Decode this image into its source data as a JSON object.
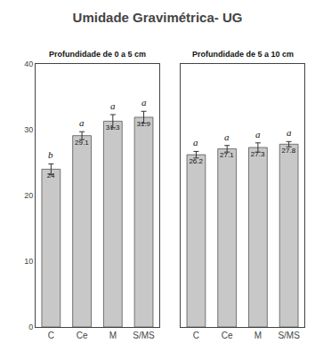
{
  "title": "Umidade Gravimétrica- UG",
  "chart_data": [
    {
      "type": "bar",
      "subtitle": "Profundidade de 0 a 5 cm",
      "categories": [
        "C",
        "Ce",
        "M",
        "S/MS"
      ],
      "values": [
        24.0,
        29.1,
        31.3,
        31.9
      ],
      "errors": [
        0.8,
        0.6,
        1.0,
        0.9
      ],
      "letters": [
        "b",
        "a",
        "a",
        "a"
      ],
      "data_labels": true,
      "color": "#c8c8c8",
      "ylim": [
        0,
        40
      ],
      "yticks": [
        0,
        10,
        20,
        30,
        40
      ],
      "grid": false
    },
    {
      "type": "bar",
      "subtitle": "Profundidade de 5 a 10 cm",
      "categories": [
        "C",
        "Ce",
        "M",
        "S/MS"
      ],
      "values": [
        26.2,
        27.1,
        27.3,
        27.8
      ],
      "errors": [
        0.5,
        0.5,
        0.7,
        0.4
      ],
      "letters": [
        "a",
        "a",
        "a",
        "a"
      ],
      "data_labels": true,
      "color": "#c8c8c8",
      "ylim": [
        0,
        40
      ],
      "yticks": [
        0,
        10,
        20,
        30,
        40
      ],
      "grid": false,
      "tick_labels": "x"
    }
  ]
}
